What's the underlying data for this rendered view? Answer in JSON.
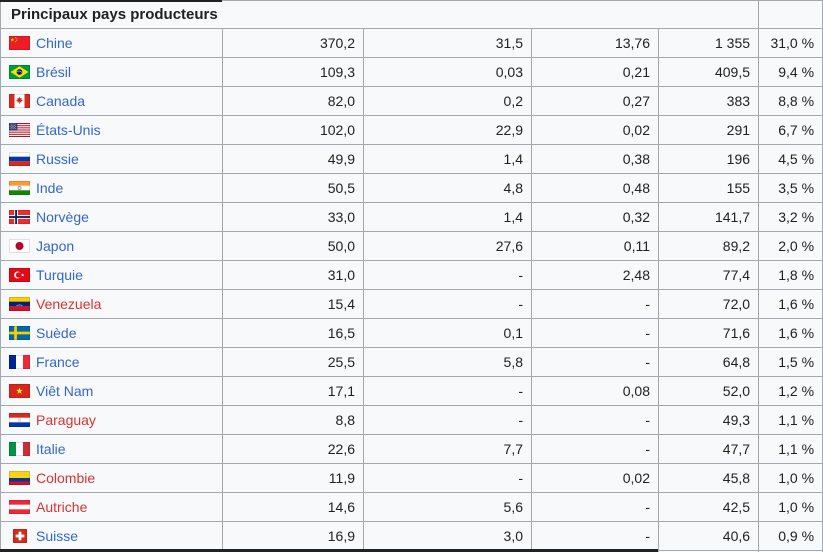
{
  "table": {
    "title": "Principaux pays producteurs",
    "rows": [
      {
        "country": "Chine",
        "flag": "china",
        "link_style": "blue",
        "values": [
          "370,2",
          "31,5",
          "13,76",
          "1 355",
          "31,0 %"
        ]
      },
      {
        "country": "Brésil",
        "flag": "brazil",
        "link_style": "blue",
        "values": [
          "109,3",
          "0,03",
          "0,21",
          "409,5",
          "9,4 %"
        ]
      },
      {
        "country": "Canada",
        "flag": "canada",
        "link_style": "blue",
        "values": [
          "82,0",
          "0,2",
          "0,27",
          "383",
          "8,8 %"
        ]
      },
      {
        "country": "États-Unis",
        "flag": "usa",
        "link_style": "blue",
        "values": [
          "102,0",
          "22,9",
          "0,02",
          "291",
          "6,7 %"
        ]
      },
      {
        "country": "Russie",
        "flag": "russia",
        "link_style": "blue",
        "values": [
          "49,9",
          "1,4",
          "0,38",
          "196",
          "4,5 %"
        ]
      },
      {
        "country": "Inde",
        "flag": "india",
        "link_style": "blue",
        "values": [
          "50,5",
          "4,8",
          "0,48",
          "155",
          "3,5 %"
        ]
      },
      {
        "country": "Norvège",
        "flag": "norway",
        "link_style": "blue",
        "values": [
          "33,0",
          "1,4",
          "0,32",
          "141,7",
          "3,2 %"
        ]
      },
      {
        "country": "Japon",
        "flag": "japan",
        "link_style": "blue",
        "values": [
          "50,0",
          "27,6",
          "0,11",
          "89,2",
          "2,0 %"
        ]
      },
      {
        "country": "Turquie",
        "flag": "turkey",
        "link_style": "blue",
        "values": [
          "31,0",
          "-",
          "2,48",
          "77,4",
          "1,8 %"
        ]
      },
      {
        "country": "Venezuela",
        "flag": "venezuela",
        "link_style": "red",
        "values": [
          "15,4",
          "-",
          "-",
          "72,0",
          "1,6 %"
        ]
      },
      {
        "country": "Suède",
        "flag": "sweden",
        "link_style": "blue",
        "values": [
          "16,5",
          "0,1",
          "-",
          "71,6",
          "1,6 %"
        ]
      },
      {
        "country": "France",
        "flag": "france",
        "link_style": "blue",
        "values": [
          "25,5",
          "5,8",
          "-",
          "64,8",
          "1,5 %"
        ]
      },
      {
        "country": "Viêt Nam",
        "flag": "vietnam",
        "link_style": "blue",
        "values": [
          "17,1",
          "-",
          "0,08",
          "52,0",
          "1,2 %"
        ]
      },
      {
        "country": "Paraguay",
        "flag": "paraguay",
        "link_style": "red",
        "values": [
          "8,8",
          "-",
          "-",
          "49,3",
          "1,1 %"
        ]
      },
      {
        "country": "Italie",
        "flag": "italy",
        "link_style": "blue",
        "values": [
          "22,6",
          "7,7",
          "-",
          "47,7",
          "1,1 %"
        ]
      },
      {
        "country": "Colombie",
        "flag": "colombia",
        "link_style": "red",
        "values": [
          "11,9",
          "-",
          "0,02",
          "45,8",
          "1,0 %"
        ]
      },
      {
        "country": "Autriche",
        "flag": "austria",
        "link_style": "red",
        "values": [
          "14,6",
          "5,6",
          "-",
          "42,5",
          "1,0 %"
        ]
      },
      {
        "country": "Suisse",
        "flag": "switzerland",
        "link_style": "blue",
        "values": [
          "16,9",
          "3,0",
          "-",
          "40,6",
          "0,9 %"
        ]
      }
    ]
  },
  "colors": {
    "link_blue": "#3366cc",
    "link_red": "#d73333",
    "border": "#a2a9b1",
    "cell_bg": "#f8f9fa",
    "text": "#202122"
  }
}
